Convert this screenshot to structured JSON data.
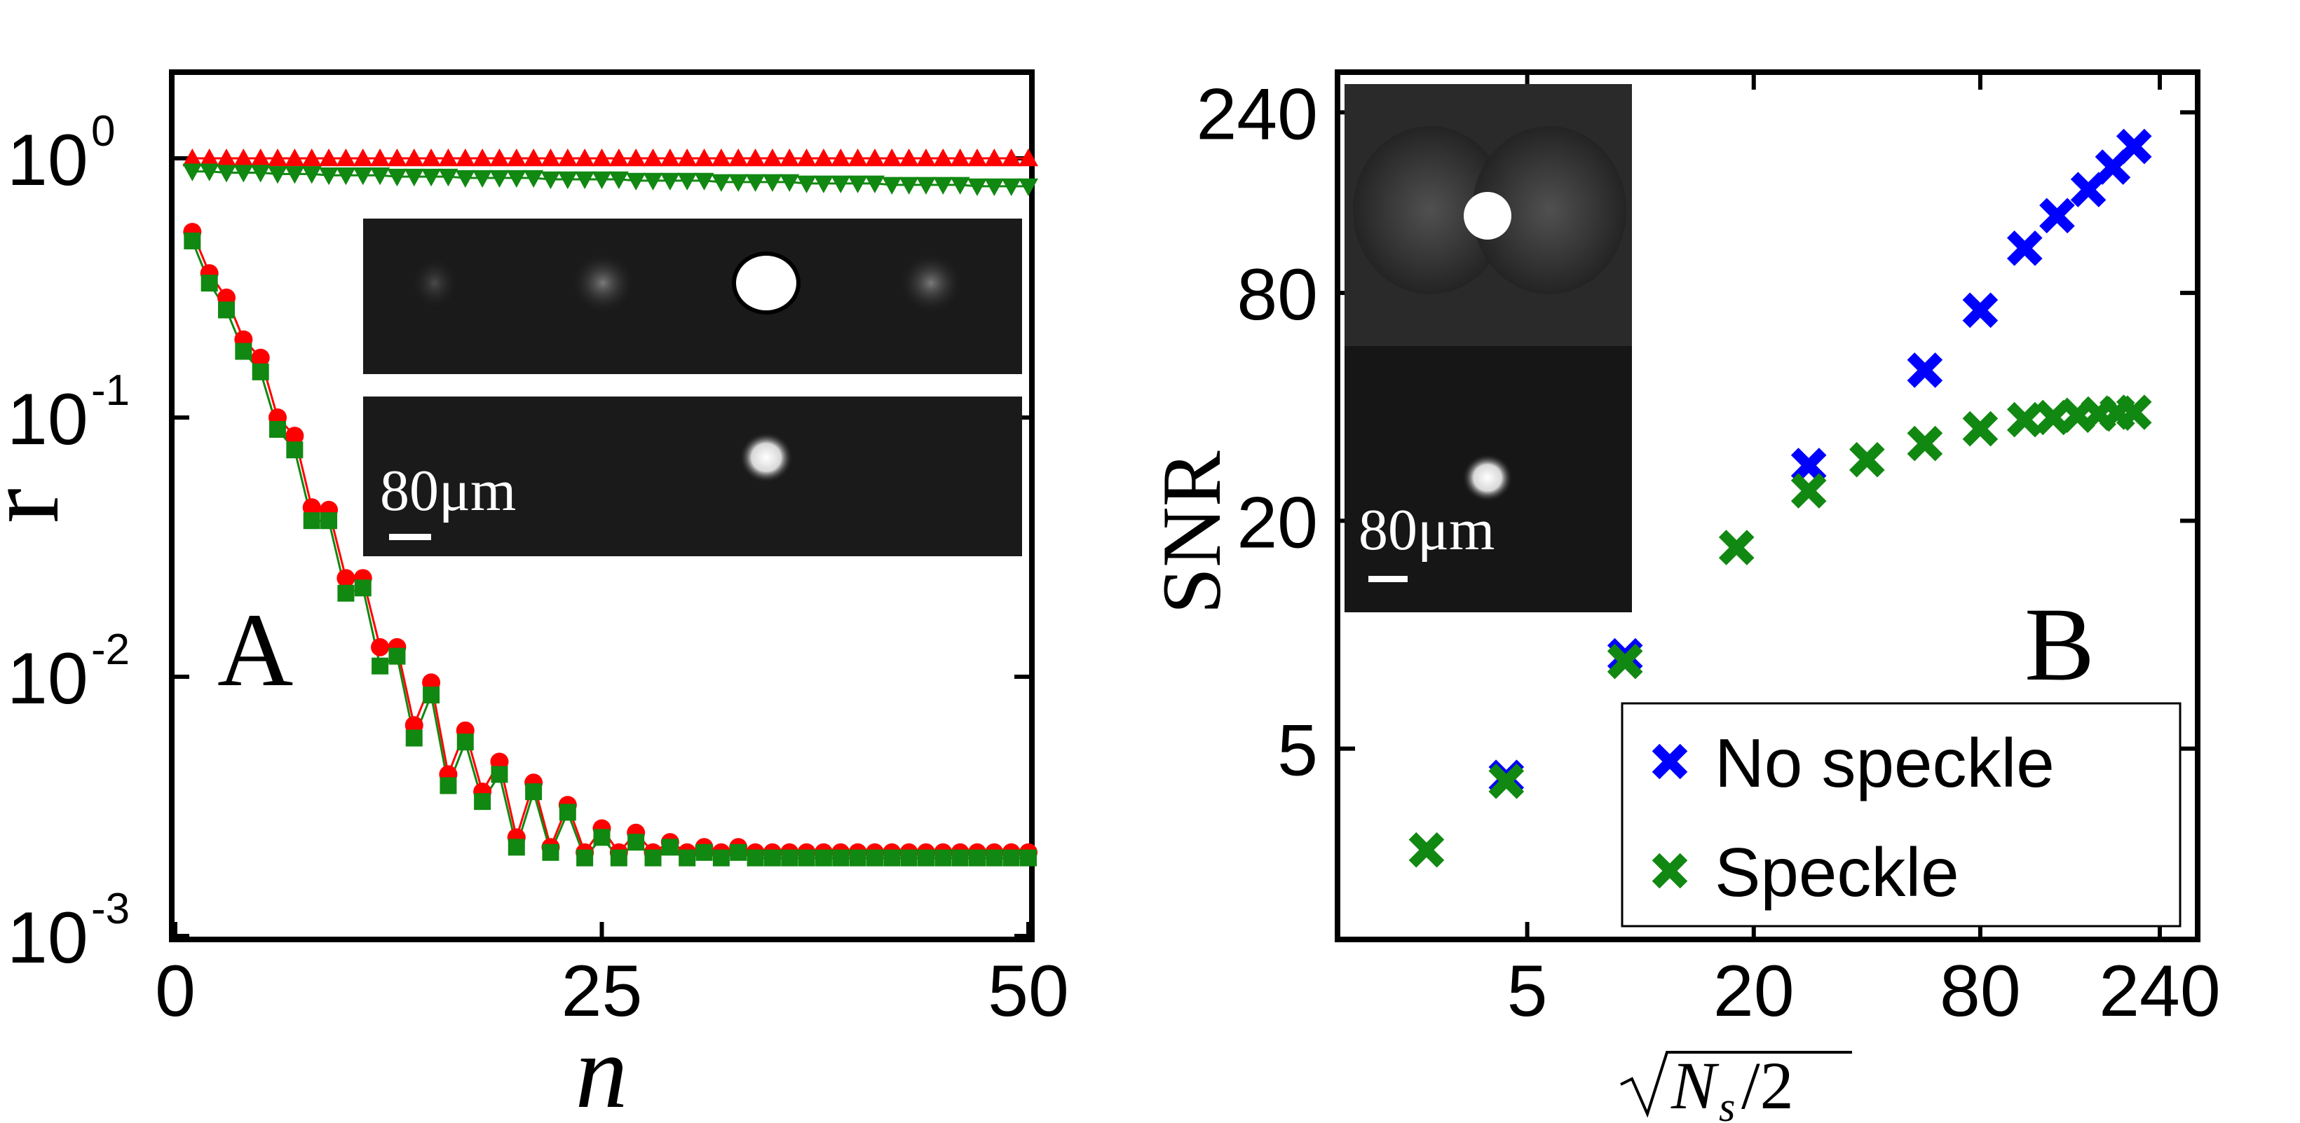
{
  "chart_data": [
    {
      "type": "line",
      "panel_label": "A",
      "xlabel": "n",
      "ylabel": "r",
      "xlim": [
        0,
        50
      ],
      "ylim": [
        0.001,
        1.6
      ],
      "yscale": "log",
      "xticks": [
        "0",
        "25",
        "50"
      ],
      "yticks": [
        {
          "value": 1,
          "base": "10",
          "exp": "0"
        },
        {
          "value": 0.1,
          "base": "10",
          "exp": "-1"
        },
        {
          "value": 0.01,
          "base": "10",
          "exp": "-2"
        },
        {
          "value": 0.001,
          "base": "10",
          "exp": "-3"
        }
      ],
      "grid": false,
      "legend": false,
      "series": [
        {
          "marker": "triangle-up",
          "color": "#ff0000",
          "x": [
            1,
            2,
            3,
            4,
            5,
            6,
            7,
            8,
            9,
            10,
            11,
            12,
            13,
            14,
            15,
            16,
            17,
            18,
            19,
            20,
            21,
            22,
            23,
            24,
            25,
            26,
            27,
            28,
            29,
            30,
            31,
            32,
            33,
            34,
            35,
            36,
            37,
            38,
            39,
            40,
            41,
            42,
            43,
            44,
            45,
            46,
            47,
            48,
            49,
            50
          ],
          "values": [
            1,
            1,
            1,
            1,
            1,
            1,
            1,
            1,
            1,
            1,
            1,
            1,
            1,
            1,
            1,
            1,
            1,
            1,
            1,
            1,
            1,
            1,
            1,
            1,
            1,
            1,
            1,
            1,
            1,
            1,
            1,
            1,
            1,
            1,
            1,
            1,
            1,
            1,
            1,
            1,
            1,
            1,
            1,
            1,
            1,
            1,
            1,
            1,
            1,
            1
          ]
        },
        {
          "marker": "triangle-down",
          "color": "#118811",
          "x": [
            1,
            2,
            3,
            4,
            5,
            6,
            7,
            8,
            9,
            10,
            11,
            12,
            13,
            14,
            15,
            16,
            17,
            18,
            19,
            20,
            21,
            22,
            23,
            24,
            25,
            26,
            27,
            28,
            29,
            30,
            31,
            32,
            33,
            34,
            35,
            36,
            37,
            38,
            39,
            40,
            41,
            42,
            43,
            44,
            45,
            46,
            47,
            48,
            49,
            50
          ],
          "values": [
            0.89,
            0.89,
            0.88,
            0.88,
            0.88,
            0.87,
            0.87,
            0.87,
            0.86,
            0.86,
            0.86,
            0.86,
            0.85,
            0.85,
            0.85,
            0.85,
            0.84,
            0.84,
            0.84,
            0.84,
            0.84,
            0.83,
            0.83,
            0.83,
            0.83,
            0.83,
            0.82,
            0.82,
            0.82,
            0.82,
            0.82,
            0.81,
            0.81,
            0.81,
            0.81,
            0.81,
            0.8,
            0.8,
            0.8,
            0.8,
            0.8,
            0.79,
            0.79,
            0.79,
            0.79,
            0.79,
            0.78,
            0.78,
            0.78,
            0.78
          ]
        },
        {
          "marker": "circle",
          "color": "#ff0000",
          "x": [
            1,
            2,
            3,
            4,
            5,
            6,
            7,
            8,
            9,
            10,
            11,
            12,
            13,
            14,
            15,
            16,
            17,
            18,
            19,
            20,
            21,
            22,
            23,
            24,
            25,
            26,
            27,
            28,
            29,
            30,
            31,
            32,
            33,
            34,
            35,
            36,
            37,
            38,
            39,
            40,
            41,
            42,
            43,
            44,
            45,
            46,
            47,
            48,
            49,
            50
          ],
          "values": [
            0.52,
            0.36,
            0.29,
            0.2,
            0.17,
            0.1,
            0.085,
            0.045,
            0.044,
            0.024,
            0.024,
            0.013,
            0.013,
            0.0065,
            0.0095,
            0.0042,
            0.0062,
            0.0036,
            0.0047,
            0.0024,
            0.0039,
            0.0022,
            0.0032,
            0.0021,
            0.0026,
            0.0021,
            0.0025,
            0.0021,
            0.0023,
            0.0021,
            0.0022,
            0.0021,
            0.0022,
            0.0021,
            0.0021,
            0.0021,
            0.0021,
            0.0021,
            0.0021,
            0.0021,
            0.0021,
            0.0021,
            0.0021,
            0.0021,
            0.0021,
            0.0021,
            0.0021,
            0.0021,
            0.0021,
            0.0021
          ]
        },
        {
          "marker": "square",
          "color": "#118811",
          "x": [
            1,
            2,
            3,
            4,
            5,
            6,
            7,
            8,
            9,
            10,
            11,
            12,
            13,
            14,
            15,
            16,
            17,
            18,
            19,
            20,
            21,
            22,
            23,
            24,
            25,
            26,
            27,
            28,
            29,
            30,
            31,
            32,
            33,
            34,
            35,
            36,
            37,
            38,
            39,
            40,
            41,
            42,
            43,
            44,
            45,
            46,
            47,
            48,
            49,
            50
          ],
          "values": [
            0.48,
            0.33,
            0.26,
            0.18,
            0.15,
            0.09,
            0.075,
            0.04,
            0.04,
            0.021,
            0.022,
            0.011,
            0.012,
            0.0058,
            0.0085,
            0.0038,
            0.0056,
            0.0033,
            0.0042,
            0.0022,
            0.0036,
            0.0021,
            0.003,
            0.002,
            0.0024,
            0.002,
            0.0023,
            0.002,
            0.0022,
            0.002,
            0.0021,
            0.002,
            0.0021,
            0.002,
            0.002,
            0.002,
            0.002,
            0.002,
            0.002,
            0.002,
            0.002,
            0.002,
            0.002,
            0.002,
            0.002,
            0.002,
            0.002,
            0.002,
            0.002,
            0.002
          ]
        }
      ],
      "inset": {
        "scale_bar_label": "80μm"
      }
    },
    {
      "type": "scatter",
      "panel_label": "B",
      "xlabel": "√(N_s/2)",
      "ylabel": "SNR",
      "xscale": "log",
      "yscale": "log",
      "xlim": [
        1.6,
        300
      ],
      "ylim": [
        1.6,
        300
      ],
      "xticks": [
        "5",
        "20",
        "80",
        "240"
      ],
      "yticks": [
        "5",
        "20",
        "80",
        "240"
      ],
      "grid": false,
      "legend_position": "bottom-right",
      "series": [
        {
          "name": "No speckle",
          "marker": "x",
          "color": "#0000ff",
          "x": [
            4.4,
            9.1,
            28,
            57,
            80,
            105,
            128,
            155,
            180,
            205
          ],
          "values": [
            4.2,
            8.8,
            28,
            50,
            72,
            105,
            128,
            150,
            172,
            195
          ]
        },
        {
          "name": "Speckle",
          "marker": "x",
          "color": "#118811",
          "x": [
            2.7,
            4.4,
            9.1,
            18,
            28,
            40,
            57,
            80,
            105,
            125,
            145,
            165,
            185,
            205
          ],
          "values": [
            2.7,
            4.1,
            8.5,
            17,
            24,
            29,
            32,
            35,
            37,
            37.5,
            38,
            38.3,
            38.5,
            38.7
          ]
        }
      ],
      "inset": {
        "scale_bar_label": "80μm"
      }
    }
  ]
}
